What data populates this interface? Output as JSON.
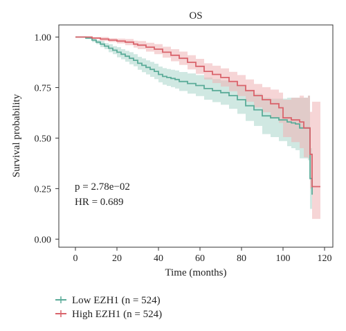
{
  "chart_data": {
    "type": "line",
    "title": "OS",
    "xlabel": "Time (months)",
    "ylabel": "Survival probability",
    "xlim": [
      -8,
      124
    ],
    "ylim": [
      -0.04,
      1.06
    ],
    "xticks": [
      0,
      20,
      40,
      60,
      80,
      100,
      120
    ],
    "yticks": [
      0.0,
      0.25,
      0.5,
      0.75,
      1.0
    ],
    "ytick_labels": [
      "0.00",
      "0.25",
      "0.50",
      "0.75",
      "1.00"
    ],
    "grid": false,
    "legend_position": "bottom-left, outside plot",
    "annotations": [
      "p = 2.78e−02",
      "HR = 0.689"
    ],
    "series": [
      {
        "name": "Low EZH1 (n = 524)",
        "color": "#5aab98",
        "band_color": "#a9d5cb",
        "x": [
          0,
          5,
          8,
          10,
          12,
          14,
          16,
          18,
          20,
          22,
          24,
          26,
          28,
          30,
          32,
          34,
          36,
          38,
          40,
          42,
          44,
          46,
          48,
          50,
          54,
          58,
          62,
          66,
          70,
          74,
          78,
          82,
          86,
          90,
          94,
          98,
          102,
          104,
          106,
          108,
          110,
          112,
          113,
          114
        ],
        "y": [
          1.0,
          0.995,
          0.985,
          0.975,
          0.965,
          0.955,
          0.945,
          0.935,
          0.925,
          0.915,
          0.905,
          0.895,
          0.885,
          0.87,
          0.86,
          0.85,
          0.84,
          0.83,
          0.815,
          0.805,
          0.8,
          0.795,
          0.79,
          0.78,
          0.77,
          0.76,
          0.745,
          0.735,
          0.725,
          0.71,
          0.69,
          0.66,
          0.64,
          0.61,
          0.6,
          0.59,
          0.58,
          0.575,
          0.57,
          0.55,
          0.55,
          0.55,
          0.3,
          0.22
        ],
        "lower": [
          1.0,
          0.99,
          0.975,
          0.965,
          0.95,
          0.94,
          0.925,
          0.915,
          0.9,
          0.89,
          0.878,
          0.865,
          0.855,
          0.838,
          0.826,
          0.815,
          0.803,
          0.792,
          0.776,
          0.764,
          0.758,
          0.752,
          0.745,
          0.733,
          0.72,
          0.708,
          0.69,
          0.678,
          0.665,
          0.645,
          0.62,
          0.585,
          0.56,
          0.52,
          0.505,
          0.485,
          0.46,
          0.45,
          0.44,
          0.4,
          0.4,
          0.39,
          0.15,
          0.07
        ],
        "upper": [
          1.0,
          1.0,
          0.995,
          0.985,
          0.98,
          0.97,
          0.965,
          0.955,
          0.95,
          0.94,
          0.932,
          0.925,
          0.915,
          0.902,
          0.894,
          0.885,
          0.877,
          0.868,
          0.854,
          0.846,
          0.842,
          0.838,
          0.835,
          0.827,
          0.82,
          0.812,
          0.8,
          0.792,
          0.785,
          0.775,
          0.76,
          0.735,
          0.72,
          0.7,
          0.695,
          0.695,
          0.7,
          0.7,
          0.7,
          0.7,
          0.7,
          0.71,
          0.45,
          0.38
        ]
      },
      {
        "name": "High EZH1 (n = 524)",
        "color": "#d9636b",
        "band_color": "#eeb3b4",
        "x": [
          0,
          5,
          8,
          12,
          16,
          20,
          24,
          28,
          30,
          34,
          38,
          42,
          46,
          50,
          54,
          58,
          62,
          66,
          70,
          74,
          78,
          82,
          86,
          90,
          94,
          98,
          100,
          104,
          108,
          110,
          112,
          113,
          114,
          115,
          116,
          118
        ],
        "y": [
          1.0,
          1.0,
          0.995,
          0.99,
          0.985,
          0.98,
          0.975,
          0.965,
          0.96,
          0.95,
          0.94,
          0.925,
          0.91,
          0.895,
          0.875,
          0.855,
          0.83,
          0.815,
          0.8,
          0.78,
          0.76,
          0.735,
          0.71,
          0.69,
          0.67,
          0.65,
          0.6,
          0.59,
          0.58,
          0.55,
          0.55,
          0.42,
          0.26,
          0.26,
          0.26,
          0.26
        ],
        "lower": [
          1.0,
          0.998,
          0.99,
          0.98,
          0.975,
          0.968,
          0.96,
          0.948,
          0.94,
          0.928,
          0.915,
          0.898,
          0.88,
          0.862,
          0.84,
          0.818,
          0.79,
          0.772,
          0.755,
          0.732,
          0.708,
          0.68,
          0.652,
          0.628,
          0.6,
          0.575,
          0.505,
          0.48,
          0.45,
          0.405,
          0.4,
          0.25,
          0.1,
          0.1,
          0.1,
          0.1
        ],
        "upper": [
          1.0,
          1.0,
          1.0,
          1.0,
          0.995,
          0.992,
          0.99,
          0.982,
          0.98,
          0.972,
          0.965,
          0.952,
          0.94,
          0.928,
          0.91,
          0.892,
          0.87,
          0.858,
          0.845,
          0.828,
          0.812,
          0.79,
          0.768,
          0.752,
          0.74,
          0.725,
          0.69,
          0.7,
          0.71,
          0.7,
          0.71,
          0.63,
          0.68,
          0.68,
          0.68,
          0.68
        ]
      }
    ]
  }
}
